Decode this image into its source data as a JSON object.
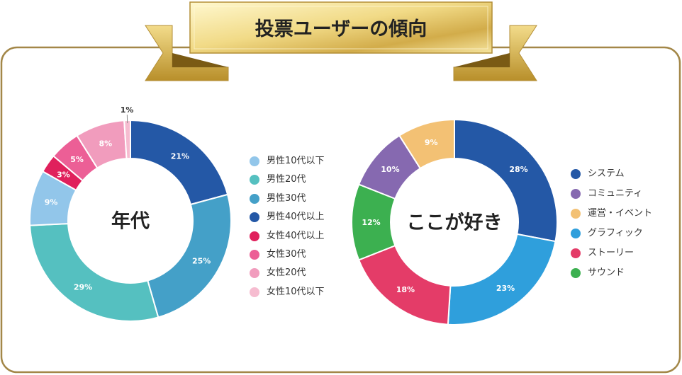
{
  "banner": {
    "title": "投票ユーザーの傾向"
  },
  "colors": {
    "frame": "#a38748",
    "gold_light": "#fff5c0",
    "gold": "#d9b654",
    "gold_dark": "#8a6a17"
  },
  "chart_data": [
    {
      "type": "pie",
      "center_label": "年代",
      "title": "",
      "series": [
        {
          "name": "男性40代以上",
          "value": 21,
          "label": "21%",
          "color": "#2458a6"
        },
        {
          "name": "男性30代",
          "value": 25,
          "label": "25%",
          "color": "#44a0c8"
        },
        {
          "name": "男性20代",
          "value": 29,
          "label": "29%",
          "color": "#55c0c0"
        },
        {
          "name": "男性10代以下",
          "value": 9,
          "label": "9%",
          "color": "#92c6ea"
        },
        {
          "name": "女性40代以上",
          "value": 3,
          "label": "3%",
          "color": "#e0205c"
        },
        {
          "name": "女性30代",
          "value": 5,
          "label": "5%",
          "color": "#ec5f96"
        },
        {
          "name": "女性20代",
          "value": 8,
          "label": "8%",
          "color": "#f19cbd"
        },
        {
          "name": "女性10代以下",
          "value": 1,
          "label": "1%",
          "color": "#f6bcd0"
        }
      ],
      "legend": [
        "男性10代以下",
        "男性20代",
        "男性30代",
        "男性40代以上",
        "女性40代以上",
        "女性30代",
        "女性20代",
        "女性10代以下"
      ],
      "legend_placement": "right"
    },
    {
      "type": "pie",
      "center_label": "ここが好き",
      "title": "",
      "series": [
        {
          "name": "システム",
          "value": 28,
          "label": "28%",
          "color": "#2458a6"
        },
        {
          "name": "グラフィック",
          "value": 23,
          "label": "23%",
          "color": "#2f9fdc"
        },
        {
          "name": "ストーリー",
          "value": 18,
          "label": "18%",
          "color": "#e43c68"
        },
        {
          "name": "サウンド",
          "value": 12,
          "label": "12%",
          "color": "#3cb050"
        },
        {
          "name": "コミュニティ",
          "value": 10,
          "label": "10%",
          "color": "#8669b0"
        },
        {
          "name": "運営・イベント",
          "value": 9,
          "label": "9%",
          "color": "#f3c174"
        }
      ],
      "legend": [
        "システム",
        "コミュニティ",
        "運営・イベント",
        "グラフィック",
        "ストーリー",
        "サウンド"
      ],
      "legend_placement": "right"
    }
  ]
}
